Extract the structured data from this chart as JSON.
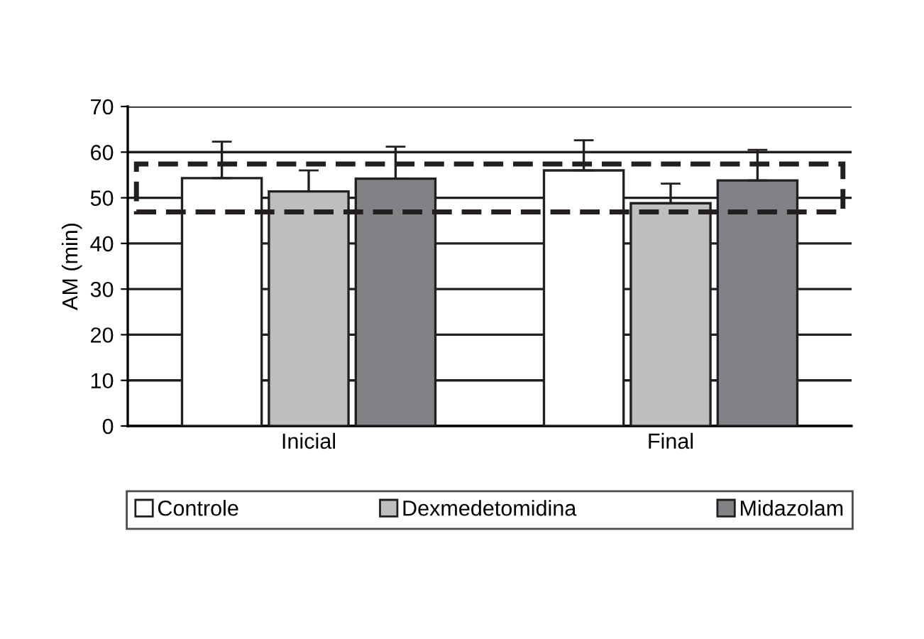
{
  "chart_data": {
    "type": "bar",
    "ylabel": "AM (min)",
    "categories": [
      "Inicial",
      "Final"
    ],
    "series": [
      {
        "name": "Controle",
        "color": "#ffffff",
        "values": [
          54.3,
          56.0
        ],
        "errors": [
          [
            54.3,
            62.3
          ],
          [
            56.0,
            62.6
          ]
        ]
      },
      {
        "name": "Dexmedetomidina",
        "color": "#bcbec0",
        "values": [
          51.4,
          48.8
        ],
        "errors": [
          [
            51.4,
            56.0
          ],
          [
            48.8,
            53.1
          ]
        ]
      },
      {
        "name": "Midazolam",
        "color": "#808285",
        "values": [
          54.2,
          53.8
        ],
        "errors": [
          [
            54.2,
            61.2
          ],
          [
            53.8,
            60.5
          ]
        ]
      }
    ],
    "ylim": [
      0,
      70
    ],
    "yticks": [
      0,
      10,
      20,
      30,
      40,
      50,
      60,
      70
    ],
    "grid": "y",
    "legend": "bottom"
  }
}
